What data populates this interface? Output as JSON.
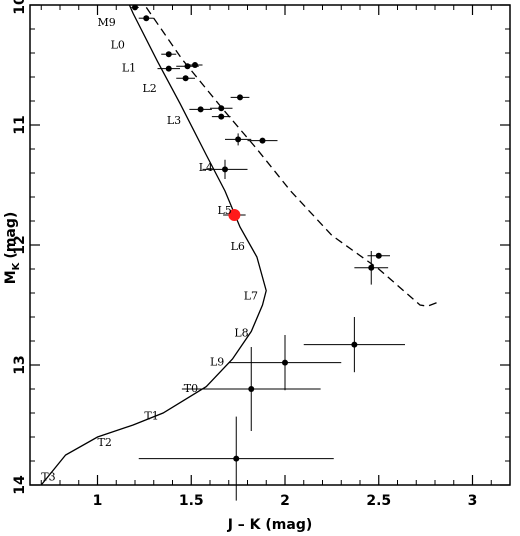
{
  "chart_data": {
    "type": "scatter",
    "title": "",
    "xlabel": "J – K (mag)",
    "ylabel_main": "M",
    "ylabel_sub": "K",
    "ylabel_unit": "(mag)",
    "xlim": [
      0.64,
      3.2
    ],
    "ylim": [
      14.0,
      10.0
    ],
    "y_inverted": true,
    "grid": false,
    "x_ticks": [
      {
        "value": 1,
        "label": "1"
      },
      {
        "value": 1.5,
        "label": "1.5"
      },
      {
        "value": 2,
        "label": "2"
      },
      {
        "value": 2.5,
        "label": "2.5"
      },
      {
        "value": 3,
        "label": "3"
      }
    ],
    "y_ticks": [
      {
        "value": 10,
        "label": "10"
      },
      {
        "value": 11,
        "label": "11"
      },
      {
        "value": 12,
        "label": "12"
      },
      {
        "value": 13,
        "label": "13"
      },
      {
        "value": 14,
        "label": "14"
      }
    ],
    "series": [
      {
        "kind": "points",
        "color": "#000000",
        "points": [
          {
            "x": 1.2,
            "y": 10.02,
            "xerr": 0.02,
            "yerr": 0.0
          },
          {
            "x": 1.26,
            "y": 10.11,
            "xerr": 0.04,
            "yerr": 0.0
          },
          {
            "x": 1.38,
            "y": 10.41,
            "xerr": 0.04,
            "yerr": 0.0
          },
          {
            "x": 1.48,
            "y": 10.51,
            "xerr": 0.06,
            "yerr": 0.0
          },
          {
            "x": 1.52,
            "y": 10.5,
            "xerr": 0.04,
            "yerr": 0.0
          },
          {
            "x": 1.38,
            "y": 10.53,
            "xerr": 0.06,
            "yerr": 0.0
          },
          {
            "x": 1.47,
            "y": 10.61,
            "xerr": 0.05,
            "yerr": 0.0
          },
          {
            "x": 1.76,
            "y": 10.77,
            "xerr": 0.05,
            "yerr": 0.0
          },
          {
            "x": 1.55,
            "y": 10.87,
            "xerr": 0.06,
            "yerr": 0.0
          },
          {
            "x": 1.66,
            "y": 10.86,
            "xerr": 0.06,
            "yerr": 0.0
          },
          {
            "x": 1.66,
            "y": 10.93,
            "xerr": 0.05,
            "yerr": 0.0
          },
          {
            "x": 1.75,
            "y": 11.12,
            "xerr": 0.07,
            "yerr": 0.05
          },
          {
            "x": 1.88,
            "y": 11.13,
            "xerr": 0.08,
            "yerr": 0.0
          },
          {
            "x": 1.68,
            "y": 11.37,
            "xerr": 0.12,
            "yerr": 0.08
          },
          {
            "x": 2.5,
            "y": 12.09,
            "xerr": 0.06,
            "yerr": 0.0
          },
          {
            "x": 2.46,
            "y": 12.19,
            "xerr": 0.09,
            "yerr": 0.14
          },
          {
            "x": 2.37,
            "y": 12.83,
            "xerr": 0.27,
            "yerr": 0.23
          },
          {
            "x": 2.0,
            "y": 12.98,
            "xerr": 0.3,
            "yerr": 0.23
          },
          {
            "x": 1.82,
            "y": 13.2,
            "xerr": 0.37,
            "yerr": 0.35
          },
          {
            "x": 1.74,
            "y": 13.78,
            "xerr": 0.52,
            "yerr": 0.35
          }
        ]
      },
      {
        "kind": "highlight",
        "color": "#ff1a1a",
        "points": [
          {
            "x": 1.73,
            "y": 11.75,
            "xerr": 0.06,
            "yerr": 0.0
          }
        ]
      },
      {
        "kind": "sequence-curve",
        "style": "solid",
        "points": [
          {
            "x": 0.7,
            "y": 14.0
          },
          {
            "x": 0.83,
            "y": 13.75
          },
          {
            "x": 1.0,
            "y": 13.6
          },
          {
            "x": 1.19,
            "y": 13.5
          },
          {
            "x": 1.35,
            "y": 13.4
          },
          {
            "x": 1.58,
            "y": 13.18
          },
          {
            "x": 1.72,
            "y": 12.95
          },
          {
            "x": 1.82,
            "y": 12.72
          },
          {
            "x": 1.88,
            "y": 12.5
          },
          {
            "x": 1.9,
            "y": 12.38
          },
          {
            "x": 1.85,
            "y": 12.1
          },
          {
            "x": 1.76,
            "y": 11.85
          },
          {
            "x": 1.68,
            "y": 11.55
          },
          {
            "x": 1.58,
            "y": 11.25
          },
          {
            "x": 1.44,
            "y": 10.82
          },
          {
            "x": 1.32,
            "y": 10.47
          },
          {
            "x": 1.19,
            "y": 10.07
          },
          {
            "x": 1.17,
            "y": 10.0
          }
        ]
      },
      {
        "kind": "sequence-curve",
        "style": "dashed",
        "points": [
          {
            "x": 1.26,
            "y": 10.02
          },
          {
            "x": 1.45,
            "y": 10.45
          },
          {
            "x": 1.67,
            "y": 10.87
          },
          {
            "x": 1.85,
            "y": 11.2
          },
          {
            "x": 2.03,
            "y": 11.55
          },
          {
            "x": 2.25,
            "y": 11.92
          },
          {
            "x": 2.5,
            "y": 12.2
          },
          {
            "x": 2.72,
            "y": 12.5
          },
          {
            "x": 2.76,
            "y": 12.51
          },
          {
            "x": 2.81,
            "y": 12.48
          }
        ]
      }
    ],
    "annotations": [
      {
        "text": "M9",
        "x": 1.0,
        "y": 10.14
      },
      {
        "text": "L0",
        "x": 1.07,
        "y": 10.33
      },
      {
        "text": "L1",
        "x": 1.13,
        "y": 10.52
      },
      {
        "text": "L2",
        "x": 1.24,
        "y": 10.69
      },
      {
        "text": "L3",
        "x": 1.37,
        "y": 10.96
      },
      {
        "text": "L4",
        "x": 1.54,
        "y": 11.35
      },
      {
        "text": "L5",
        "x": 1.64,
        "y": 11.71
      },
      {
        "text": "L6",
        "x": 1.71,
        "y": 12.01
      },
      {
        "text": "L7",
        "x": 1.78,
        "y": 12.42
      },
      {
        "text": "L8",
        "x": 1.73,
        "y": 12.73
      },
      {
        "text": "L9",
        "x": 1.6,
        "y": 12.97
      },
      {
        "text": "T0",
        "x": 1.46,
        "y": 13.19
      },
      {
        "text": "T1",
        "x": 1.25,
        "y": 13.42
      },
      {
        "text": "T2",
        "x": 1.0,
        "y": 13.64
      },
      {
        "text": "T3",
        "x": 0.7,
        "y": 13.93
      }
    ]
  }
}
